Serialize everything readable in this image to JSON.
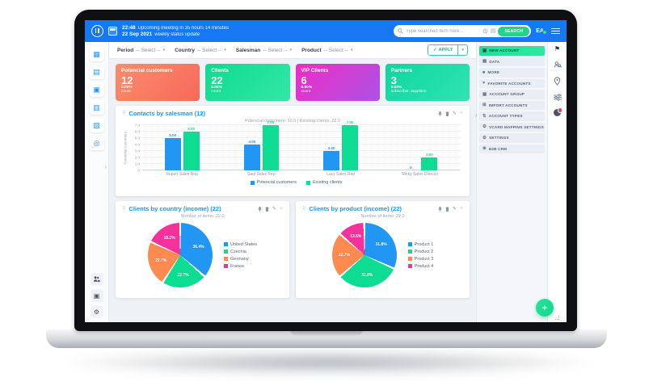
{
  "topbar": {
    "time": "22:48",
    "meeting_line1": "Upcoming meeting in 35 hours 14 minutes",
    "date": "22 Sep 2021",
    "meeting_line2": "weekly status update",
    "search_placeholder": "Type searched item here...",
    "search_button": "SEARCH",
    "user_initials": "EA"
  },
  "filters": {
    "items": [
      {
        "label": "Period",
        "value": "-- Select --"
      },
      {
        "label": "Country",
        "value": "-- Select --"
      },
      {
        "label": "Salesman",
        "value": "-- Select --"
      },
      {
        "label": "Product",
        "value": "-- Select --"
      }
    ],
    "apply_label": "APPLY"
  },
  "kpis": [
    {
      "title": "Potencial customers",
      "value": "12",
      "percent": "0.00%",
      "caption": "count",
      "gradient": [
        "#fb8d6c",
        "#f7695a"
      ]
    },
    {
      "title": "Clients",
      "value": "22",
      "percent": "0.00%",
      "caption": "count",
      "gradient": [
        "#0edb8d",
        "#33e7a7"
      ]
    },
    {
      "title": "VIP Clients",
      "value": "6",
      "percent": "0.00%",
      "caption": "count",
      "gradient": [
        "#ef2cc3",
        "#ad52e6"
      ]
    },
    {
      "title": "Partners",
      "value": "3",
      "percent": "0.00%",
      "caption": "subscriber, suppliers",
      "gradient": [
        "#0fd6a0",
        "#2fe4b3"
      ]
    }
  ],
  "chart_data": [
    {
      "type": "bar",
      "title": "Contacts by salesman (12)",
      "subtitle": "Potencial customers: 12.0 | Existing clients: 22.0",
      "categories": [
        "Rupert Sales Rep",
        "Saul Sales Rep",
        "Lucy Sales Rep",
        "Ricky Sales Director"
      ],
      "series": [
        {
          "name": "Potencial customers",
          "color": "#2196f3",
          "values": [
            5,
            4,
            3,
            0
          ]
        },
        {
          "name": "Existing clients",
          "color": "#0ddd92",
          "values": [
            6,
            7,
            7,
            2
          ]
        }
      ],
      "value_labels": [
        [
          "5.00",
          "6.00"
        ],
        [
          "4.00",
          "7.00"
        ],
        [
          "3.00",
          "7.00"
        ],
        [
          "0",
          "2.00"
        ]
      ],
      "ylabel": "Potencial customers",
      "ylim": [
        0,
        7
      ],
      "yticks": [
        "0",
        "1.0",
        "2.0",
        "3.0",
        "4.0",
        "5.0",
        "6.0",
        "7.0"
      ],
      "grid": true,
      "legend_position": "bottom"
    },
    {
      "type": "pie",
      "title": "Clients by country (income) (22)",
      "subtitle": "Number of items: 22.0",
      "labels": [
        "United States",
        "Czechia",
        "Germany",
        "France"
      ],
      "values": [
        36.4,
        22.7,
        22.7,
        18.2
      ],
      "display": [
        "36.4%",
        "22.7%",
        "22.7%",
        "18.2%"
      ],
      "colors": [
        "#2196f3",
        "#0ddd92",
        "#fd8a4e",
        "#f5329b"
      ],
      "legend_position": "right"
    },
    {
      "type": "pie",
      "title": "Clients by product (income) (22)",
      "subtitle": "Number of items: 22.0",
      "labels": [
        "Product 1",
        "Product 2",
        "Product 3",
        "Product 4"
      ],
      "values": [
        31.8,
        31.8,
        22.7,
        13.6
      ],
      "display": [
        "31.8%",
        "31.8%",
        "22.7%",
        "13.6%"
      ],
      "colors": [
        "#2196f3",
        "#0ddd92",
        "#fd8a4e",
        "#f5329b"
      ],
      "legend_position": "right"
    }
  ],
  "left_sidebar": {
    "top_icons": [
      "dashboard-icon",
      "reports-icon",
      "products-icon",
      "analytics-icon",
      "statistics-icon",
      "target-icon"
    ],
    "bottom_icons": [
      "users-icon",
      "inventory-icon",
      "settings-icon"
    ]
  },
  "right_menu": {
    "items": [
      {
        "label": "NEW ACCOUNT",
        "icon": "new-account-icon",
        "active": true
      },
      {
        "label": "DATA",
        "icon": "data-icon",
        "active": false
      },
      {
        "label": "MORE",
        "icon": "more-icon",
        "active": false
      },
      {
        "label": "FAVORITE ACCOUNTS",
        "icon": "favorite-icon",
        "active": false
      },
      {
        "label": "ACCOUNT GROUP",
        "icon": "account-group-icon",
        "active": false
      },
      {
        "label": "IMPORT ACCOUNTS",
        "icon": "import-icon",
        "active": false
      },
      {
        "label": "ACCOUNT TYPES",
        "icon": "account-types-icon",
        "active": false
      },
      {
        "label": "VCARD MAPPING SETTINGS",
        "icon": "gear-icon",
        "active": false
      },
      {
        "label": "SETTINGS",
        "icon": "gear-icon",
        "active": false
      },
      {
        "label": "B2B CRM",
        "icon": "b2b-crm-icon",
        "active": false
      }
    ]
  },
  "colors": {
    "topbar_blue": "#1678f2",
    "accent_green": "#23d488",
    "title_blue": "#2196f3",
    "active_menu_green": "#21de96"
  }
}
